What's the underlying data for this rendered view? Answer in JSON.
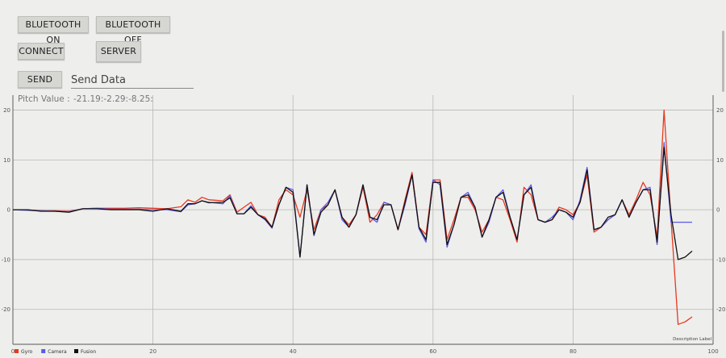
{
  "buttons": {
    "bluetooth_on": "BLUETOOTH ON",
    "bluetooth_off": "BLUETOOTH OFF",
    "connect": "CONNECT",
    "server": "SERVER",
    "send": "SEND"
  },
  "send_input": {
    "value": "Send Data"
  },
  "pitch": {
    "label": "Pitch Value :",
    "value": "-21.19:-2.29:-8.25:"
  },
  "chart_data": {
    "type": "line",
    "description_label": "Description Label",
    "xlim": [
      0,
      100
    ],
    "ylim": [
      -27,
      23
    ],
    "x_ticks": [
      0,
      20,
      40,
      60,
      80,
      100
    ],
    "y_ticks": [
      -20,
      -10,
      0,
      10,
      20
    ],
    "grid": true,
    "legend_position": "bottom-left",
    "series": [
      {
        "name": "Gyro",
        "color": "#e8381e",
        "points": [
          [
            0,
            0
          ],
          [
            2,
            0
          ],
          [
            4,
            -0.2
          ],
          [
            6,
            -0.2
          ],
          [
            8,
            -0.3
          ],
          [
            10,
            0.2
          ],
          [
            12,
            0.3
          ],
          [
            14,
            0.3
          ],
          [
            16,
            0.3
          ],
          [
            18,
            0.4
          ],
          [
            20,
            0.3
          ],
          [
            22,
            0.2
          ],
          [
            24,
            0.6
          ],
          [
            25,
            2
          ],
          [
            26,
            1.5
          ],
          [
            27,
            2.5
          ],
          [
            28,
            2
          ],
          [
            30,
            1.8
          ],
          [
            31,
            3
          ],
          [
            32,
            -0.5
          ],
          [
            33,
            0.5
          ],
          [
            34,
            1.5
          ],
          [
            35,
            -1
          ],
          [
            36,
            -1.5
          ],
          [
            37,
            -3.5
          ],
          [
            38,
            2
          ],
          [
            39,
            4
          ],
          [
            40,
            3
          ],
          [
            41,
            -1.5
          ],
          [
            42,
            4
          ],
          [
            43,
            -4
          ],
          [
            44,
            0
          ],
          [
            45,
            1
          ],
          [
            46,
            4
          ],
          [
            47,
            -1.5
          ],
          [
            48,
            -3
          ],
          [
            49,
            -1
          ],
          [
            50,
            4.5
          ],
          [
            51,
            -2.5
          ],
          [
            52,
            -1
          ],
          [
            53,
            1.5
          ],
          [
            54,
            1
          ],
          [
            55,
            -4
          ],
          [
            56,
            2
          ],
          [
            57,
            7.5
          ],
          [
            58,
            -3.5
          ],
          [
            59,
            -5
          ],
          [
            60,
            6
          ],
          [
            61,
            6
          ],
          [
            62,
            -6
          ],
          [
            63,
            -2
          ],
          [
            64,
            2.5
          ],
          [
            65,
            2.5
          ],
          [
            66,
            0
          ],
          [
            67,
            -4.5
          ],
          [
            68,
            -2
          ],
          [
            69,
            2.5
          ],
          [
            70,
            2
          ],
          [
            71,
            -2
          ],
          [
            72,
            -6.5
          ],
          [
            73,
            4.5
          ],
          [
            74,
            3
          ],
          [
            75,
            -2
          ],
          [
            76,
            -2.5
          ],
          [
            77,
            -2
          ],
          [
            78,
            0.5
          ],
          [
            79,
            0
          ],
          [
            80,
            -1
          ],
          [
            81,
            1.5
          ],
          [
            82,
            7
          ],
          [
            83,
            -4.5
          ],
          [
            84,
            -3.5
          ],
          [
            85,
            -2
          ],
          [
            86,
            -1
          ],
          [
            87,
            2
          ],
          [
            88,
            -1
          ],
          [
            89,
            2
          ],
          [
            90,
            5.5
          ],
          [
            91,
            3
          ],
          [
            92,
            -5.5
          ],
          [
            93,
            20
          ],
          [
            94,
            -2
          ],
          [
            95,
            -23
          ],
          [
            96,
            -22.5
          ],
          [
            97,
            -21.5
          ]
        ]
      },
      {
        "name": "Camera",
        "color": "#5a5ae8",
        "points": [
          [
            0,
            0
          ],
          [
            2,
            -0.1
          ],
          [
            4,
            -0.2
          ],
          [
            6,
            -0.3
          ],
          [
            8,
            -0.4
          ],
          [
            10,
            0.2
          ],
          [
            12,
            0.3
          ],
          [
            14,
            0.1
          ],
          [
            16,
            0.1
          ],
          [
            18,
            0.1
          ],
          [
            20,
            0
          ],
          [
            22,
            0
          ],
          [
            24,
            -0.4
          ],
          [
            25,
            1
          ],
          [
            26,
            1.2
          ],
          [
            27,
            1.8
          ],
          [
            28,
            1.5
          ],
          [
            30,
            1.2
          ],
          [
            31,
            2.8
          ],
          [
            32,
            -0.8
          ],
          [
            33,
            -0.8
          ],
          [
            34,
            0.8
          ],
          [
            35,
            -1
          ],
          [
            36,
            -2
          ],
          [
            37,
            -3.7
          ],
          [
            38,
            1
          ],
          [
            39,
            4.5
          ],
          [
            40,
            4
          ],
          [
            41,
            -9.5
          ],
          [
            42,
            5
          ],
          [
            43,
            -5.2
          ],
          [
            44,
            0
          ],
          [
            45,
            1.5
          ],
          [
            46,
            4
          ],
          [
            47,
            -2
          ],
          [
            48,
            -3.5
          ],
          [
            49,
            -1
          ],
          [
            50,
            5
          ],
          [
            51,
            -1.5
          ],
          [
            52,
            -2.5
          ],
          [
            53,
            1.5
          ],
          [
            54,
            1
          ],
          [
            55,
            -4
          ],
          [
            56,
            1
          ],
          [
            57,
            7
          ],
          [
            58,
            -3.8
          ],
          [
            59,
            -6.5
          ],
          [
            60,
            6
          ],
          [
            61,
            5
          ],
          [
            62,
            -7.5
          ],
          [
            63,
            -3
          ],
          [
            64,
            2.5
          ],
          [
            65,
            3.5
          ],
          [
            66,
            0.5
          ],
          [
            67,
            -5.5
          ],
          [
            68,
            -2.5
          ],
          [
            69,
            2.5
          ],
          [
            70,
            4
          ],
          [
            71,
            -1.5
          ],
          [
            72,
            -6
          ],
          [
            73,
            3
          ],
          [
            74,
            5
          ],
          [
            75,
            -2
          ],
          [
            76,
            -2.5
          ],
          [
            77,
            -1.5
          ],
          [
            78,
            0
          ],
          [
            79,
            -0.5
          ],
          [
            80,
            -2
          ],
          [
            81,
            2
          ],
          [
            82,
            8.5
          ],
          [
            83,
            -4
          ],
          [
            84,
            -3.5
          ],
          [
            85,
            -2
          ],
          [
            86,
            -1
          ],
          [
            87,
            2
          ],
          [
            88,
            -1.5
          ],
          [
            89,
            1.5
          ],
          [
            90,
            4
          ],
          [
            91,
            4.5
          ],
          [
            92,
            -7
          ],
          [
            93,
            13.5
          ],
          [
            94,
            -2.5
          ],
          [
            95,
            -2.5
          ],
          [
            96,
            -2.5
          ],
          [
            97,
            -2.5
          ]
        ]
      },
      {
        "name": "Fusion",
        "color": "#111111",
        "points": [
          [
            0,
            0
          ],
          [
            2,
            0
          ],
          [
            4,
            -0.3
          ],
          [
            6,
            -0.3
          ],
          [
            8,
            -0.5
          ],
          [
            10,
            0.2
          ],
          [
            12,
            0.2
          ],
          [
            14,
            0
          ],
          [
            16,
            0
          ],
          [
            18,
            0
          ],
          [
            20,
            -0.3
          ],
          [
            22,
            0.2
          ],
          [
            24,
            -0.3
          ],
          [
            25,
            1.2
          ],
          [
            26,
            1.2
          ],
          [
            27,
            1.8
          ],
          [
            28,
            1.4
          ],
          [
            30,
            1.5
          ],
          [
            31,
            2.4
          ],
          [
            32,
            -0.8
          ],
          [
            33,
            -0.8
          ],
          [
            34,
            0.5
          ],
          [
            35,
            -1
          ],
          [
            36,
            -1.8
          ],
          [
            37,
            -3.5
          ],
          [
            38,
            1
          ],
          [
            39,
            4.5
          ],
          [
            40,
            3.5
          ],
          [
            41,
            -9.5
          ],
          [
            42,
            5
          ],
          [
            43,
            -5
          ],
          [
            44,
            -0.5
          ],
          [
            45,
            1
          ],
          [
            46,
            4
          ],
          [
            47,
            -1.5
          ],
          [
            48,
            -3.5
          ],
          [
            49,
            -1
          ],
          [
            50,
            5
          ],
          [
            51,
            -1.5
          ],
          [
            52,
            -2
          ],
          [
            53,
            1
          ],
          [
            54,
            1
          ],
          [
            55,
            -4
          ],
          [
            56,
            1.5
          ],
          [
            57,
            7
          ],
          [
            58,
            -3.5
          ],
          [
            59,
            -6
          ],
          [
            60,
            5.5
          ],
          [
            61,
            5.5
          ],
          [
            62,
            -7
          ],
          [
            63,
            -3
          ],
          [
            64,
            2.5
          ],
          [
            65,
            3
          ],
          [
            66,
            0.5
          ],
          [
            67,
            -5.5
          ],
          [
            68,
            -2
          ],
          [
            69,
            2.5
          ],
          [
            70,
            3.5
          ],
          [
            71,
            -1.5
          ],
          [
            72,
            -6
          ],
          [
            73,
            3
          ],
          [
            74,
            4.5
          ],
          [
            75,
            -2
          ],
          [
            76,
            -2.5
          ],
          [
            77,
            -2
          ],
          [
            78,
            0
          ],
          [
            79,
            -0.5
          ],
          [
            80,
            -1.5
          ],
          [
            81,
            1.5
          ],
          [
            82,
            8
          ],
          [
            83,
            -4
          ],
          [
            84,
            -3.5
          ],
          [
            85,
            -1.5
          ],
          [
            86,
            -1
          ],
          [
            87,
            2
          ],
          [
            88,
            -1.5
          ],
          [
            89,
            1.5
          ],
          [
            90,
            4
          ],
          [
            91,
            4
          ],
          [
            92,
            -6.5
          ],
          [
            93,
            12.5
          ],
          [
            94,
            -1
          ],
          [
            95,
            -10
          ],
          [
            96,
            -9.5
          ],
          [
            97,
            -8.3
          ]
        ]
      }
    ]
  }
}
